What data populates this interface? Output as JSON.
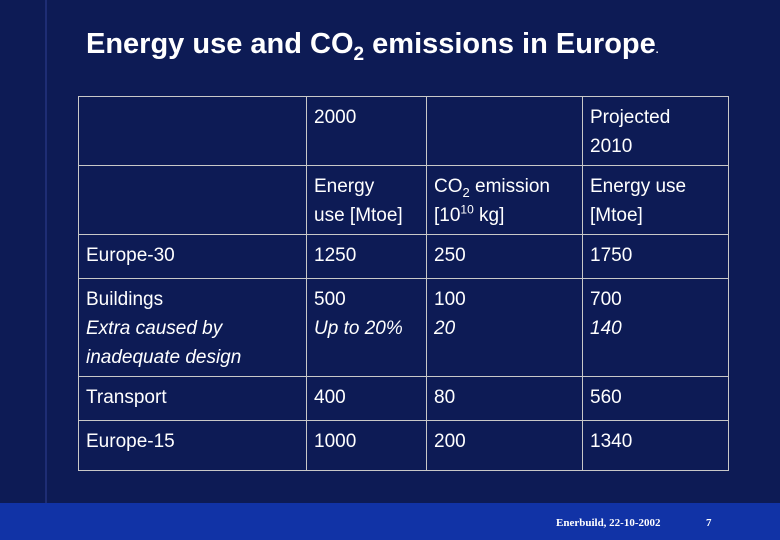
{
  "title": {
    "prefix": "Energy use and CO",
    "subscript": "2",
    "suffix": " emissions in Europe",
    "trailing_dot": "."
  },
  "table": {
    "header_row1": {
      "col1": "",
      "col2": "2000",
      "col3": "",
      "col4_line1": "Projected",
      "col4_line2": "2010"
    },
    "header_row2": {
      "col1": "",
      "col2_line1": "Energy",
      "col2_line2": "use [Mtoe]",
      "col3_line1_prefix": "CO",
      "col3_line1_sub": "2",
      "col3_line1_suffix": " emission",
      "col3_line2_prefix": "[10",
      "col3_line2_sup": "10",
      "col3_line2_suffix": " kg]",
      "col4_line1": "Energy use",
      "col4_line2": "[Mtoe]"
    },
    "rows": [
      {
        "label": "Europe-30",
        "energy_2000": "1250",
        "co2_2000": "250",
        "energy_2010": "1750"
      },
      {
        "label": "Buildings",
        "sublabel_line1": "Extra caused by",
        "sublabel_line2": "inadequate design",
        "energy_2000": "500",
        "energy_2000_sub": "Up to 20%",
        "co2_2000": "100",
        "co2_2000_sub": "20",
        "energy_2010": "700",
        "energy_2010_sub": "140"
      },
      {
        "label": "Transport",
        "energy_2000": "400",
        "co2_2000": "80",
        "energy_2010": "560"
      },
      {
        "label": "Europe-15",
        "energy_2000": "1000",
        "co2_2000": "200",
        "energy_2010": "1340"
      }
    ]
  },
  "footer": {
    "text": "Enerbuild, 22-10-2002",
    "page_number": "7"
  }
}
